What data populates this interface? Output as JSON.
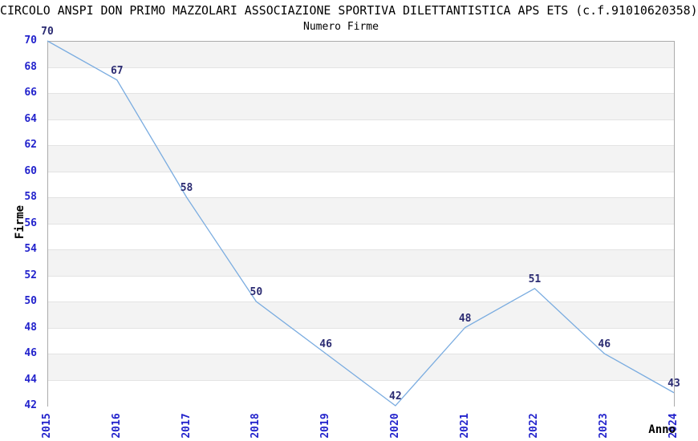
{
  "header": {
    "title": "CIRCOLO ANSPI DON PRIMO MAZZOLARI ASSOCIAZIONE SPORTIVA DILETTANTISTICA APS ETS (c.f.91010620358)",
    "subtitle": "Numero Firme"
  },
  "chart_data": {
    "type": "line",
    "title": "Numero Firme",
    "xlabel": "Anno",
    "ylabel": "Firme",
    "categories": [
      "2015",
      "2016",
      "2017",
      "2018",
      "2019",
      "2020",
      "2021",
      "2022",
      "2023",
      "2024"
    ],
    "series": [
      {
        "name": "Numero Firme",
        "values": [
          70,
          67,
          58,
          50,
          46,
          42,
          48,
          51,
          46,
          43
        ]
      }
    ],
    "ylim": [
      42,
      70
    ],
    "ytick_step": 2,
    "grid": "horizontal-bands-alternating",
    "legend": "none",
    "data_labels_shown": true,
    "colors": {
      "line": "#7AACE0",
      "tick_label": "#2222CC",
      "data_label": "#2B2B72",
      "band_gray": "#F3F3F3",
      "band_white": "#FFFFFF",
      "gridline": "#E3E3E3",
      "plot_border": "#ABABAB",
      "text": "#000000",
      "background": "#FFFFFF"
    }
  }
}
